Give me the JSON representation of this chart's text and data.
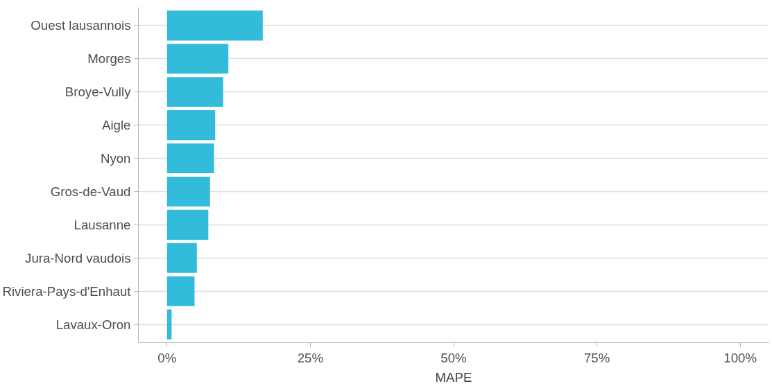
{
  "chart_data": {
    "type": "bar",
    "orientation": "horizontal",
    "xlabel": "MAPE",
    "categories": [
      "Ouest lausannois",
      "Morges",
      "Broye-Vully",
      "Aigle",
      "Nyon",
      "Gros-de-Vaud",
      "Lausanne",
      "Jura-Nord vaudois",
      "Riviera-Pays-d'Enhaut",
      "Lavaux-Oron"
    ],
    "values": [
      16.7,
      10.7,
      9.8,
      8.4,
      8.2,
      7.5,
      7.2,
      5.2,
      4.8,
      0.8
    ],
    "color": "#33bbdb",
    "xlim": [
      -5,
      105
    ],
    "xticks": [
      {
        "value": 0,
        "label": "0%"
      },
      {
        "value": 25,
        "label": "25%"
      },
      {
        "value": 50,
        "label": "50%"
      },
      {
        "value": 75,
        "label": "75%"
      },
      {
        "value": 100,
        "label": "100%"
      }
    ],
    "grid": "y"
  }
}
